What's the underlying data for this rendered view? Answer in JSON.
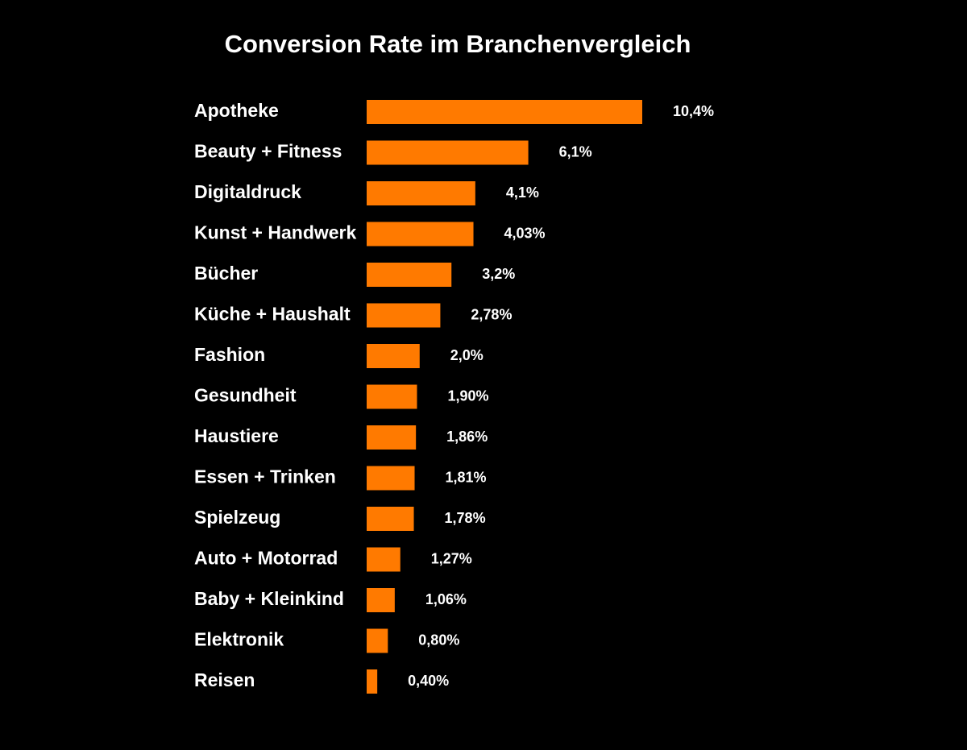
{
  "chart_data": {
    "type": "bar",
    "orientation": "horizontal",
    "title": "Conversion Rate im Branchenvergleich",
    "categories": [
      "Apotheke",
      "Beauty + Fitness",
      "Digitaldruck",
      "Kunst + Handwerk",
      "Bücher",
      "Küche + Haushalt",
      "Fashion",
      "Gesundheit",
      "Haustiere",
      "Essen + Trinken",
      "Spielzeug",
      "Auto + Motorrad",
      "Baby + Kleinkind",
      "Elektronik",
      "Reisen"
    ],
    "values": [
      10.4,
      6.1,
      4.1,
      4.03,
      3.2,
      2.78,
      2.0,
      1.9,
      1.86,
      1.81,
      1.78,
      1.27,
      1.06,
      0.8,
      0.4
    ],
    "value_labels": [
      "10,4%",
      "6,1%",
      "4,1%",
      "4,03%",
      "3,2%",
      "2,78%",
      "2,0%",
      "1,90%",
      "1,86%",
      "1,81%",
      "1,78%",
      "1,27%",
      "1,06%",
      "0,80%",
      "0,40%"
    ],
    "color": "#ff7a00"
  }
}
